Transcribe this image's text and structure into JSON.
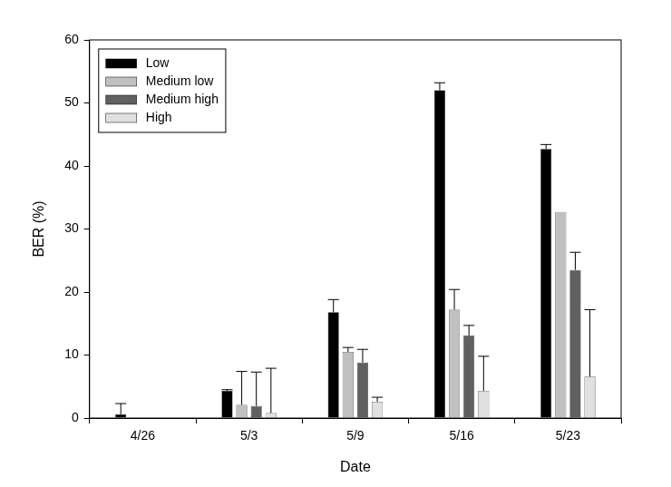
{
  "chart_data": {
    "type": "bar",
    "x_label": "Date",
    "y_label": "BER (%)",
    "categories": [
      "4/26",
      "5/3",
      "5/9",
      "5/16",
      "5/23"
    ],
    "series": [
      {
        "name": "Low",
        "color": "#000000",
        "values": [
          0.6,
          4.3,
          16.8,
          52.0,
          42.7
        ],
        "errors": [
          1.7,
          0.2,
          2.0,
          1.2,
          0.7
        ]
      },
      {
        "name": "Medium low",
        "color": "#c0c0c0",
        "values": [
          0,
          2.1,
          10.5,
          17.2,
          32.7
        ],
        "errors": [
          0,
          5.3,
          0.7,
          3.2,
          0
        ]
      },
      {
        "name": "Medium high",
        "color": "#606060",
        "values": [
          0,
          1.9,
          8.8,
          13.1,
          23.5
        ],
        "errors": [
          0,
          5.4,
          2.1,
          1.6,
          2.8
        ]
      },
      {
        "name": "High",
        "color": "#e0e0e0",
        "values": [
          0,
          0.8,
          2.6,
          4.3,
          6.6
        ],
        "errors": [
          0,
          7.1,
          0.7,
          5.5,
          10.6
        ]
      }
    ],
    "ylim": [
      0,
      60
    ],
    "yticks": [
      0,
      10,
      20,
      30,
      40,
      50,
      60
    ],
    "grid": false,
    "legend": "upper left"
  }
}
